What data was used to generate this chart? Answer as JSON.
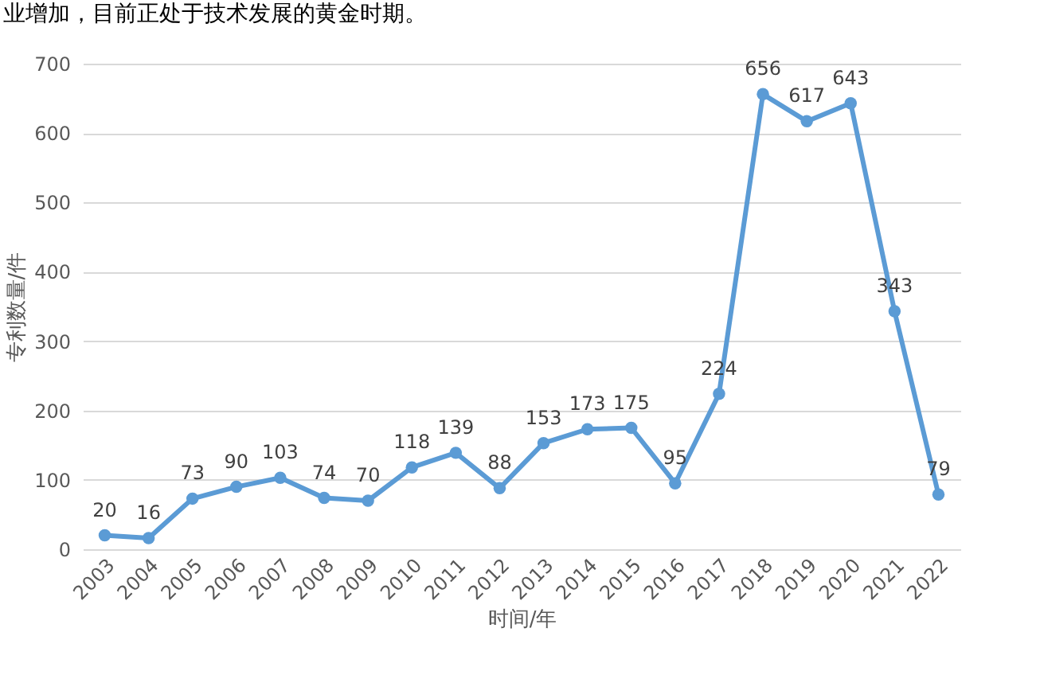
{
  "chart_data": {
    "type": "line",
    "annotations": [
      "业增加，目前正处于技术发展的黄金时期。"
    ],
    "xlabel": "时间/年",
    "ylabel": "专利数量/件",
    "categories": [
      "2003",
      "2004",
      "2005",
      "2006",
      "2007",
      "2008",
      "2009",
      "2010",
      "2011",
      "2012",
      "2013",
      "2014",
      "2015",
      "2016",
      "2017",
      "2018",
      "2019",
      "2020",
      "2021",
      "2022"
    ],
    "series": [
      {
        "color": "#5b9bd5",
        "values": [
          20,
          16,
          73,
          90,
          103,
          74,
          70,
          118,
          139,
          88,
          153,
          173,
          175,
          95,
          224,
          656,
          617,
          643,
          343,
          79
        ]
      }
    ],
    "ylim": [
      0,
      700
    ],
    "yticks": [
      0,
      100,
      200,
      300,
      400,
      500,
      600,
      700
    ],
    "grid": "y",
    "marker": "circle",
    "line_style": "solid",
    "data_labels": true,
    "legend": false
  }
}
